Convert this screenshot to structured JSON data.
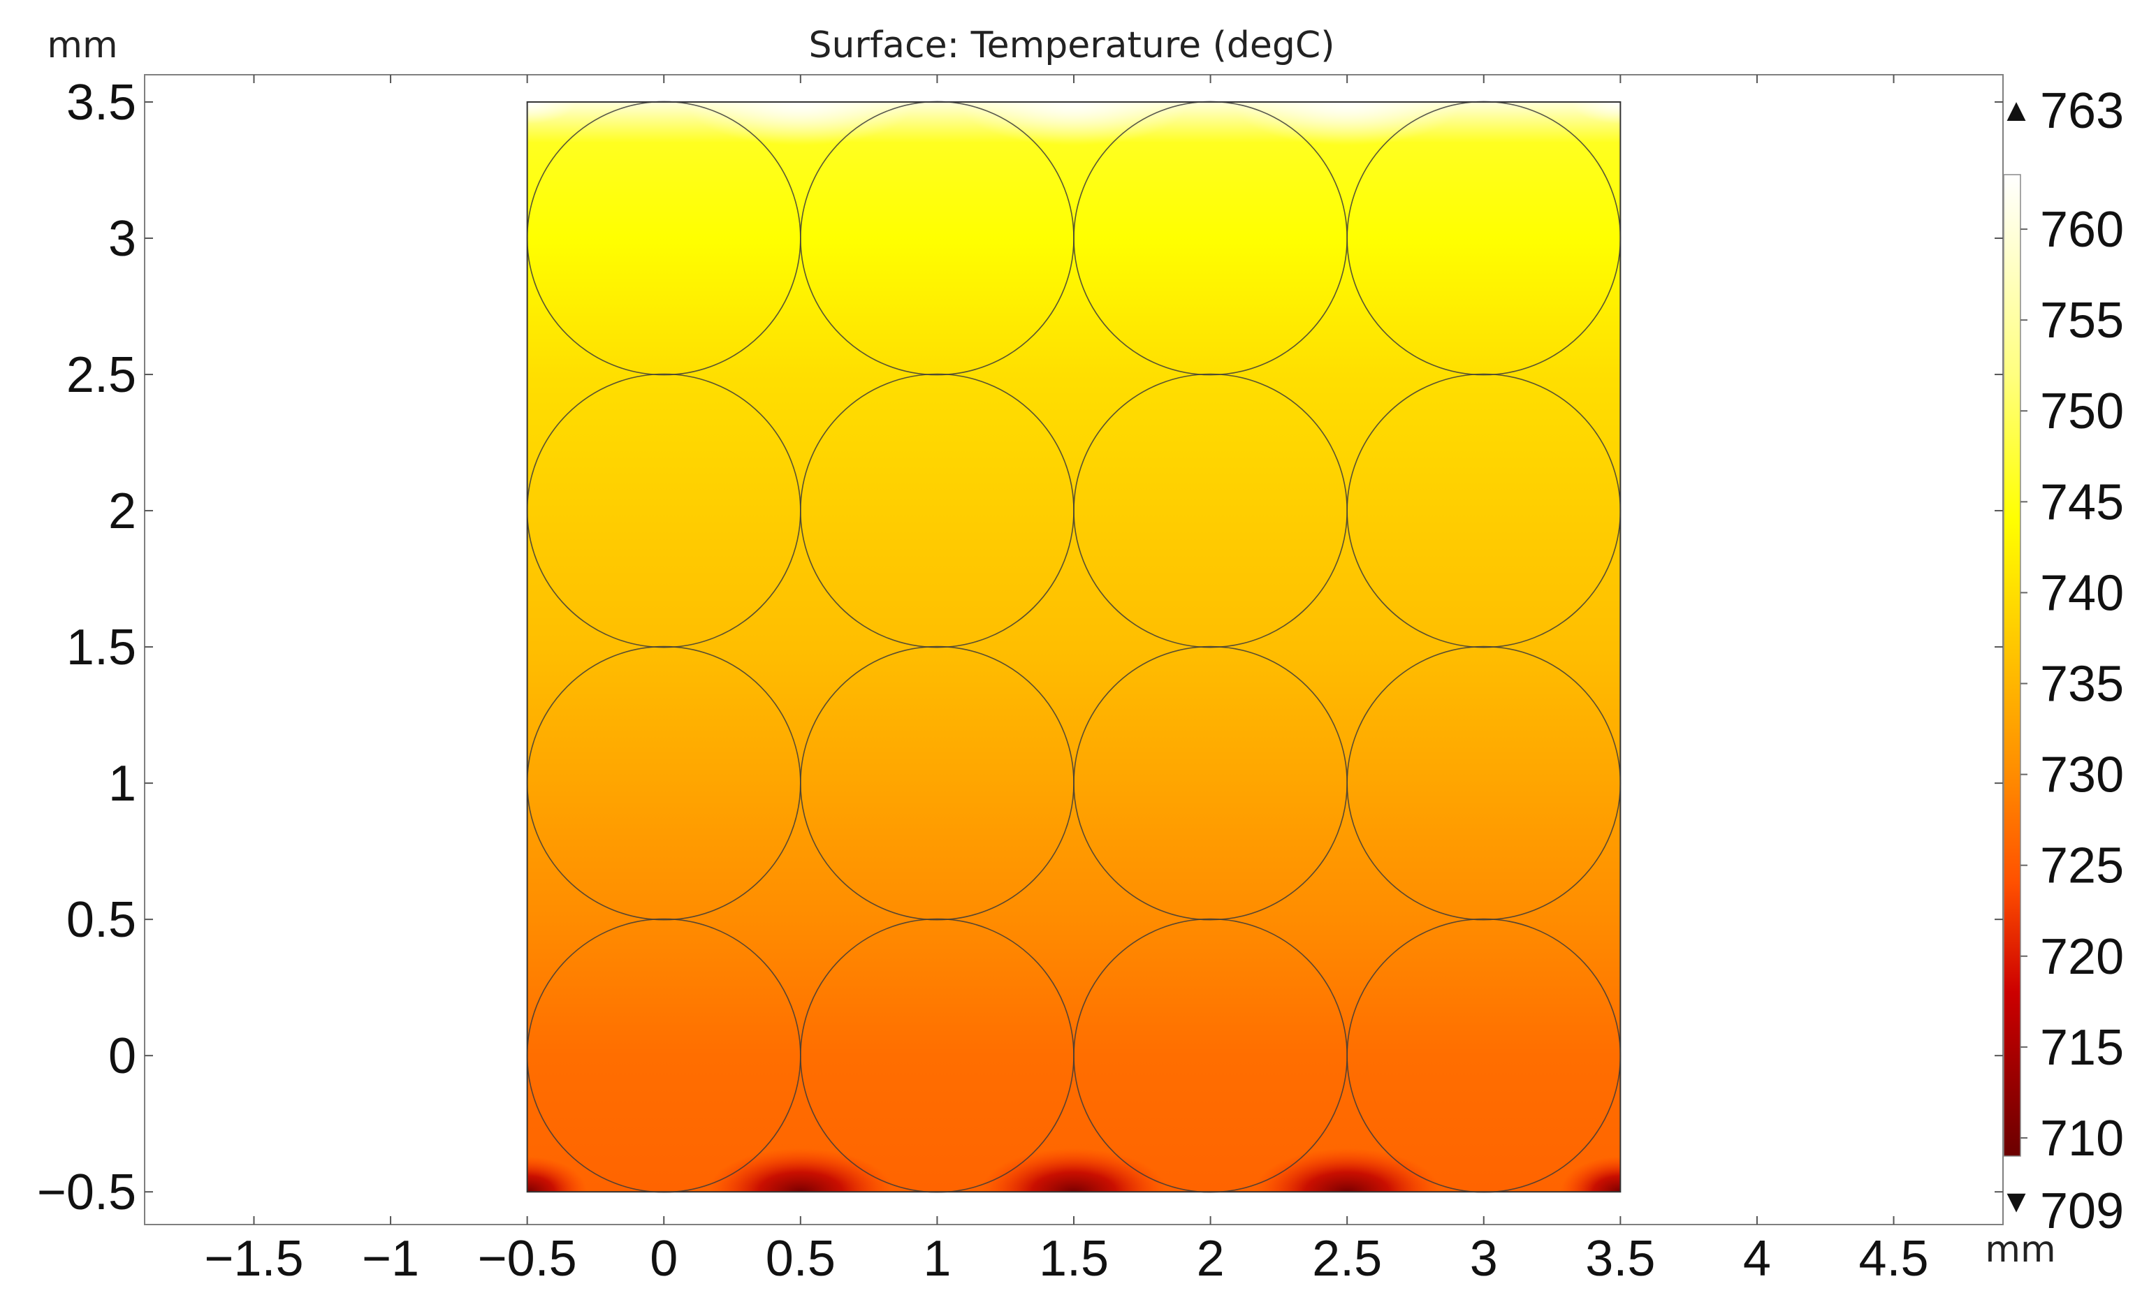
{
  "chart_data": {
    "type": "heatmap",
    "title": "Surface: Temperature (degC)",
    "xlabel": "mm",
    "ylabel": "mm",
    "xlim": [
      -1.9,
      4.9
    ],
    "ylim": [
      -0.62,
      3.6
    ],
    "x_ticks": [
      "−1.5",
      "−1",
      "−0.5",
      "0",
      "0.5",
      "1",
      "1.5",
      "2",
      "2.5",
      "3",
      "3.5",
      "4",
      "4.5"
    ],
    "x_tick_values": [
      -1.5,
      -1,
      -0.5,
      0,
      0.5,
      1,
      1.5,
      2,
      2.5,
      3,
      3.5,
      4,
      4.5
    ],
    "y_ticks": [
      "−0.5",
      "0",
      "0.5",
      "1",
      "1.5",
      "2",
      "2.5",
      "3",
      "3.5"
    ],
    "y_tick_values": [
      -0.5,
      0,
      0.5,
      1,
      1.5,
      2,
      2.5,
      3,
      3.5
    ],
    "domain": {
      "x_range": [
        -0.5,
        3.5
      ],
      "y_range": [
        -0.5,
        3.5
      ]
    },
    "circles": {
      "radius": 0.5,
      "centers_x": [
        0,
        1,
        2,
        3
      ],
      "centers_y": [
        0,
        1,
        2,
        3
      ]
    },
    "temperature_profile": [
      {
        "y": -0.5,
        "value": 726
      },
      {
        "y": 0.0,
        "value": 727
      },
      {
        "y": 0.5,
        "value": 730
      },
      {
        "y": 1.0,
        "value": 733
      },
      {
        "y": 1.5,
        "value": 736
      },
      {
        "y": 2.0,
        "value": 738
      },
      {
        "y": 2.5,
        "value": 740
      },
      {
        "y": 3.0,
        "value": 744
      },
      {
        "y": 3.35,
        "value": 746
      },
      {
        "y": 3.5,
        "value": 760
      }
    ],
    "colorbar": {
      "max": 763,
      "min": 709,
      "max_label": "763",
      "min_label": "709",
      "max_arrow": "▲",
      "min_arrow": "▼",
      "ticks": [
        "710",
        "715",
        "720",
        "725",
        "730",
        "735",
        "740",
        "745",
        "750",
        "755",
        "760"
      ],
      "tick_values": [
        710,
        715,
        720,
        725,
        730,
        735,
        740,
        745,
        750,
        755,
        760
      ],
      "colormap": "ThermalLight",
      "color_stops": [
        {
          "value": 709,
          "color": "#6b0000"
        },
        {
          "value": 718,
          "color": "#cc0000"
        },
        {
          "value": 724,
          "color": "#ff5000"
        },
        {
          "value": 730,
          "color": "#ff8c00"
        },
        {
          "value": 736,
          "color": "#ffbe00"
        },
        {
          "value": 744,
          "color": "#ffff00"
        },
        {
          "value": 752,
          "color": "#ffff80"
        },
        {
          "value": 763,
          "color": "#ffffff"
        }
      ]
    }
  }
}
